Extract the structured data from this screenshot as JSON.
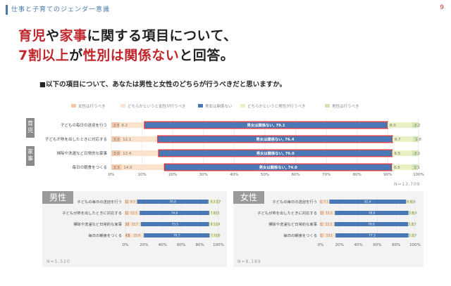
{
  "header": {
    "title": "仕事と子育てのジェンダー意識",
    "page_number": "9"
  },
  "headline": {
    "line1": [
      {
        "text": "育児",
        "red": true
      },
      {
        "text": "や",
        "red": false
      },
      {
        "text": "家事",
        "red": true
      },
      {
        "text": "に関する項目について、",
        "red": false
      }
    ],
    "line2": [
      {
        "text": "7割以上",
        "red": true
      },
      {
        "text": "が",
        "red": false
      },
      {
        "text": "性別は関係ない",
        "red": true
      },
      {
        "text": "と回答。",
        "red": false
      }
    ]
  },
  "question": "■以下の項目について、あなたは男性と女性のどちらが行うべきだと思いますか。",
  "group_labels": [
    "育児",
    "家事"
  ],
  "colors": {
    "s1": "#f4c8a8",
    "s2": "#fbe2cc",
    "s3": "#4a78b4",
    "s4": "#e8f0c4",
    "s5": "#d3e4b4",
    "highlight": "#d9272e",
    "label": "#777777"
  },
  "chart_data": [
    {
      "type": "bar",
      "orientation": "horizontal",
      "stacked": true,
      "categories": [
        "子どもの毎日の送迎を行う",
        "子どもが熱を出したときに対応する",
        "掃除や洗濯など日常的な家事",
        "毎日の朝食をつくる"
      ],
      "series": [
        {
          "name": "女性は行うべき",
          "values": [
            2.6,
            3.0,
            3.0,
            3.3
          ]
        },
        {
          "name": "どちらかというと女性が行うべき",
          "values": [
            8.2,
            12.1,
            12.4,
            14.0
          ]
        },
        {
          "name": "男女は関係ない",
          "values": [
            79.1,
            76.4,
            76.0,
            74.0
          ]
        },
        {
          "name": "どちらかというと男性が行うべき",
          "values": [
            8.0,
            6.7,
            6.5,
            6.5
          ]
        },
        {
          "name": "男性は行うべき",
          "values": [
            2.2,
            1.8,
            2.1,
            2.1
          ]
        }
      ],
      "bar_labels": [
        "男女は関係ない, 79.1",
        "男女は関係ない, 76.4",
        "男女は関係ない, 76.0",
        "男女は関係ない, 74.0"
      ],
      "xticks": [
        "0%",
        "10%",
        "20%",
        "30%",
        "40%",
        "50%",
        "60%",
        "70%",
        "80%",
        "90%",
        "100%"
      ],
      "xlim": [
        0,
        100
      ],
      "n_label": "N=13,709"
    },
    {
      "type": "bar",
      "orientation": "horizontal",
      "stacked": true,
      "panel_label": "男性",
      "categories": [
        "子どもの毎日の送迎を行う",
        "子どもが熱を出したときに対応する",
        "掃除や洗濯など日常的な家事",
        "毎日の朝食をつくる"
      ],
      "series": [
        {
          "name": "女性は行うべき",
          "values": [
            3.2,
            3.2,
            3.8,
            4.8
          ]
        },
        {
          "name": "どちらかというと女性が行うべき",
          "values": [
            9.3,
            12.1,
            12.7,
            15.0
          ]
        },
        {
          "name": "男女は関係ない",
          "values": [
            76.8,
            74.8,
            73.5,
            70.7
          ]
        },
        {
          "name": "どちらかというと男性が行うべき",
          "values": [
            9.3,
            7.8,
            8.1,
            7.7
          ]
        },
        {
          "name": "男性は行うべき",
          "values": [
            2.7,
            2.1,
            2.4,
            2.6
          ]
        }
      ],
      "value_labels": [
        [
          "3.2",
          "9.3",
          "76.8",
          "9.3",
          "2.7"
        ],
        [
          "3.2",
          "12.1",
          "74.8",
          "7.8",
          "2.1"
        ],
        [
          "3.8",
          "12.7",
          "73.5",
          "8.1",
          "2.4"
        ],
        [
          "4.8",
          "15.0",
          "70.7",
          "7.7",
          "2.6"
        ]
      ],
      "xticks": [
        "0%",
        "20%",
        "40%",
        "60%",
        "80%",
        "100%"
      ],
      "xlim": [
        0,
        100
      ],
      "n_label": "N=5,520"
    },
    {
      "type": "bar",
      "orientation": "horizontal",
      "stacked": true,
      "panel_label": "女性",
      "categories": [
        "子どもの毎日の送迎を行う",
        "子どもが熱を出したときに対応する",
        "掃除や洗濯など日常的な家事",
        "毎日の朝食をつくる"
      ],
      "series": [
        {
          "name": "女性は行うべき",
          "values": [
            2.1,
            2.9,
            2.5,
            2.7
          ]
        },
        {
          "name": "どちらかというと女性が行うべき",
          "values": [
            7.1,
            12.2,
            12.2,
            13.1
          ]
        },
        {
          "name": "男女は関係ない",
          "values": [
            81.4,
            78.0,
            78.0,
            77.3
          ]
        },
        {
          "name": "どちらかというと男性が行うべき",
          "values": [
            6.6,
            5.8,
            5.3,
            5.3
          ]
        },
        {
          "name": "男性は行うべき",
          "values": [
            1.6,
            1.4,
            1.7,
            1.7
          ]
        }
      ],
      "value_labels": [
        [
          "2.1",
          "7.1",
          "81.4",
          "6.6",
          "1.6"
        ],
        [
          "2.9",
          "12.2",
          "78.0",
          "5.8",
          "1.4"
        ],
        [
          "2.5",
          "12.2",
          "78.0",
          "5.3",
          "1.7"
        ],
        [
          "2.7",
          "13.1",
          "77.3",
          "5.3",
          "1.7"
        ]
      ],
      "xticks": [
        "0%",
        "20%",
        "40%",
        "60%",
        "80%",
        "100%"
      ],
      "xlim": [
        0,
        100
      ],
      "n_label": "N=8,189"
    }
  ]
}
